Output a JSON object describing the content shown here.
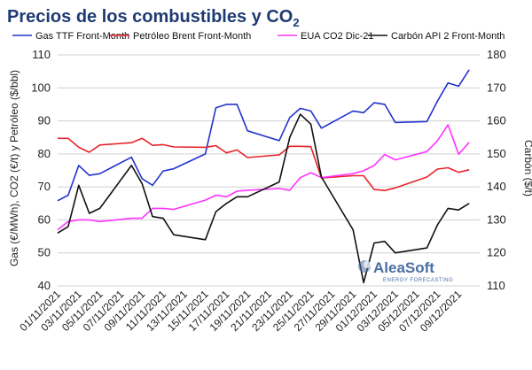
{
  "chart_data": {
    "type": "line",
    "title": "Precios de los combustibles y CO",
    "title_subscript": "2",
    "ylabel_left": "Gas (€/MWh), CO2 (€/t)  y Petróleo ($/bbl)",
    "ylabel_right": "Carbón ($/t)",
    "ylim_left": [
      40,
      110
    ],
    "ylim_right": [
      110,
      180
    ],
    "yticks_left": [
      40,
      50,
      60,
      70,
      80,
      90,
      100,
      110
    ],
    "yticks_right": [
      110,
      120,
      130,
      140,
      150,
      160,
      170,
      180
    ],
    "grid": true,
    "legend_position": "top",
    "x_tick_labels": [
      "01/11/2021",
      "03/11/2021",
      "05/11/2021",
      "07/11/2021",
      "09/11/2021",
      "11/11/2021",
      "13/11/2021",
      "15/11/2021",
      "17/11/2021",
      "19/11/2021",
      "21/11/2021",
      "23/11/2021",
      "25/11/2021",
      "27/11/2021",
      "29/11/2021",
      "01/12/2021",
      "03/12/2021",
      "05/12/2021",
      "07/12/2021",
      "09/12/2021"
    ],
    "x_range_days": [
      0,
      40
    ],
    "series": [
      {
        "name": "Gas TTF Front-Month",
        "color": "#2233cc",
        "axis": "left",
        "x": [
          "01/11/2021",
          "02/11/2021",
          "03/11/2021",
          "04/11/2021",
          "05/11/2021",
          "08/11/2021",
          "09/11/2021",
          "10/11/2021",
          "11/11/2021",
          "12/11/2021",
          "15/11/2021",
          "16/11/2021",
          "17/11/2021",
          "18/11/2021",
          "19/11/2021",
          "22/11/2021",
          "23/11/2021",
          "24/11/2021",
          "25/11/2021",
          "26/11/2021",
          "29/11/2021",
          "30/11/2021",
          "01/12/2021",
          "02/12/2021",
          "03/12/2021",
          "06/12/2021",
          "07/12/2021",
          "08/12/2021",
          "09/12/2021",
          "10/12/2021"
        ],
        "values": [
          65.8,
          67.5,
          76.5,
          73.5,
          74.0,
          79.0,
          72.5,
          70.5,
          74.8,
          75.5,
          80.0,
          94.0,
          95.0,
          95.0,
          87.0,
          84.0,
          91.0,
          93.8,
          93.0,
          87.8,
          93.0,
          92.5,
          95.5,
          95.0,
          89.5,
          89.8,
          96.0,
          101.5,
          100.5,
          105.5
        ]
      },
      {
        "name": "Petróleo Brent Front-Month",
        "color": "#e8232a",
        "axis": "left",
        "x": [
          "01/11/2021",
          "02/11/2021",
          "03/11/2021",
          "04/11/2021",
          "05/11/2021",
          "08/11/2021",
          "09/11/2021",
          "10/11/2021",
          "11/11/2021",
          "12/11/2021",
          "15/11/2021",
          "16/11/2021",
          "17/11/2021",
          "18/11/2021",
          "19/11/2021",
          "22/11/2021",
          "23/11/2021",
          "24/11/2021",
          "25/11/2021",
          "26/11/2021",
          "29/11/2021",
          "30/11/2021",
          "01/12/2021",
          "02/12/2021",
          "03/12/2021",
          "06/12/2021",
          "07/12/2021",
          "08/12/2021",
          "09/12/2021",
          "10/12/2021"
        ],
        "values": [
          84.7,
          84.7,
          82.0,
          80.5,
          82.7,
          83.4,
          84.7,
          82.6,
          82.8,
          82.1,
          82.0,
          82.5,
          80.3,
          81.2,
          78.9,
          79.7,
          82.3,
          82.3,
          82.2,
          72.7,
          73.4,
          73.4,
          69.2,
          68.9,
          69.7,
          73.0,
          75.4,
          75.8,
          74.4,
          75.2
        ]
      },
      {
        "name": "EUA CO2 Dic-21",
        "color": "#ff33ff",
        "axis": "left",
        "x": [
          "01/11/2021",
          "02/11/2021",
          "03/11/2021",
          "04/11/2021",
          "05/11/2021",
          "08/11/2021",
          "09/11/2021",
          "10/11/2021",
          "11/11/2021",
          "12/11/2021",
          "15/11/2021",
          "16/11/2021",
          "17/11/2021",
          "18/11/2021",
          "19/11/2021",
          "22/11/2021",
          "23/11/2021",
          "24/11/2021",
          "25/11/2021",
          "26/11/2021",
          "29/11/2021",
          "30/11/2021",
          "01/12/2021",
          "02/12/2021",
          "03/12/2021",
          "06/12/2021",
          "07/12/2021",
          "08/12/2021",
          "09/12/2021",
          "10/12/2021"
        ],
        "values": [
          57.0,
          59.5,
          60.0,
          60.0,
          59.5,
          60.5,
          60.5,
          63.5,
          63.5,
          63.2,
          66.0,
          67.5,
          67.0,
          68.7,
          69.0,
          69.5,
          69.0,
          72.8,
          74.3,
          72.8,
          74.0,
          74.9,
          76.5,
          79.8,
          78.2,
          80.7,
          84.0,
          88.8,
          79.9,
          83.5
        ]
      },
      {
        "name": "Carbón API 2 Front-Month",
        "color": "#111111",
        "axis": "right",
        "x": [
          "01/11/2021",
          "02/11/2021",
          "03/11/2021",
          "04/11/2021",
          "05/11/2021",
          "08/11/2021",
          "09/11/2021",
          "10/11/2021",
          "11/11/2021",
          "12/11/2021",
          "15/11/2021",
          "16/11/2021",
          "17/11/2021",
          "18/11/2021",
          "19/11/2021",
          "22/11/2021",
          "23/11/2021",
          "24/11/2021",
          "25/11/2021",
          "26/11/2021",
          "29/11/2021",
          "30/11/2021",
          "01/12/2021",
          "02/12/2021",
          "03/12/2021",
          "06/12/2021",
          "07/12/2021",
          "08/12/2021",
          "09/12/2021",
          "10/12/2021"
        ],
        "values": [
          126.0,
          128.0,
          140.5,
          132.0,
          133.5,
          146.5,
          141.0,
          131.0,
          130.5,
          125.5,
          124.0,
          132.5,
          135.0,
          137.0,
          137.0,
          141.5,
          155.0,
          162.0,
          159.0,
          143.0,
          127.0,
          111.0,
          123.0,
          123.5,
          120.0,
          121.5,
          128.5,
          133.5,
          133.0,
          135.0
        ]
      }
    ]
  },
  "brand": {
    "name": "AleaSoft",
    "tagline": "ENERGY FORECASTING",
    "color": "#4a6fa5"
  }
}
